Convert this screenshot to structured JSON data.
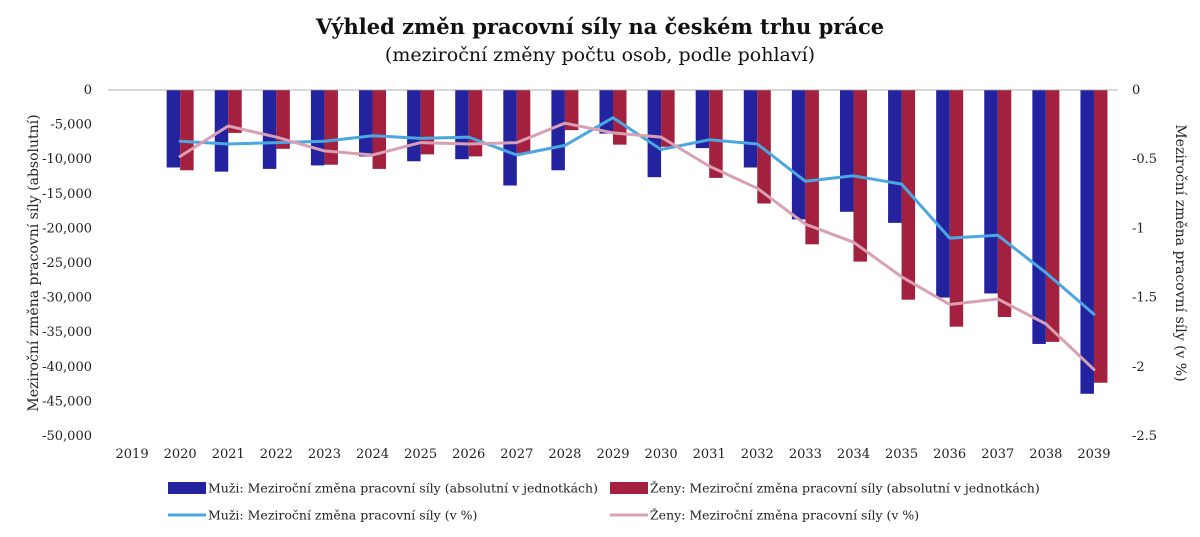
{
  "chart_data": {
    "type": "bar",
    "title": "Výhled změn pracovní síly na českém trhu práce",
    "subtitle": "(meziroční změny počtu osob, podle pohlaví)",
    "ylabel": "Meziroční změna pracovní síly (absolutní)",
    "y2label": "Meziroční změna pracovní síly (v %)",
    "categories": [
      "2019",
      "2020",
      "2021",
      "2022",
      "2023",
      "2024",
      "2025",
      "2026",
      "2027",
      "2028",
      "2029",
      "2030",
      "2031",
      "2032",
      "2033",
      "2034",
      "2035",
      "2036",
      "2037",
      "2038",
      "2039"
    ],
    "ylim": [
      -50000,
      0
    ],
    "yticks": [
      0,
      -5000,
      -10000,
      -15000,
      -20000,
      -25000,
      -30000,
      -35000,
      -40000,
      -45000,
      -50000
    ],
    "ytick_labels": [
      "0",
      "-5,000",
      "-10,000",
      "-15,000",
      "-20,000",
      "-25,000",
      "-30,000",
      "-35,000",
      "-40,000",
      "-45,000",
      "-50,000"
    ],
    "y2lim": [
      -2.5,
      0
    ],
    "y2ticks": [
      0,
      -0.5,
      -1,
      -1.5,
      -2,
      -2.5
    ],
    "y2tick_labels": [
      "0",
      "-0.5",
      "-1",
      "-1.5",
      "-2",
      "-2.5"
    ],
    "bar_series": [
      {
        "name": "Muži: Meziroční změna pracovní síly (absolutní v jednotkách)",
        "color": "#2323a0",
        "values": [
          null,
          -11200,
          -11800,
          -11400,
          -10900,
          -9600,
          -10300,
          -10000,
          -13800,
          -11600,
          -6300,
          -12600,
          -8400,
          -11200,
          -18700,
          -17600,
          -19200,
          -30000,
          -29400,
          -36700,
          -43900
        ]
      },
      {
        "name": "Ženy: Meziroční změna pracovní síly (absolutní v jednotkách)",
        "color": "#a3203f",
        "values": [
          null,
          -11600,
          -6200,
          -8500,
          -10800,
          -11400,
          -9300,
          -9600,
          -9100,
          -5800,
          -7900,
          -8200,
          -12700,
          -16400,
          -22300,
          -24800,
          -30300,
          -34200,
          -32800,
          -36400,
          -42300
        ]
      }
    ],
    "line_series": [
      {
        "name": "Muži: Meziroční změna pracovní síly (v %)",
        "color": "#4aa7e0",
        "values": [
          null,
          -0.37,
          -0.39,
          -0.38,
          -0.37,
          -0.33,
          -0.35,
          -0.34,
          -0.47,
          -0.4,
          -0.2,
          -0.43,
          -0.36,
          -0.39,
          -0.66,
          -0.62,
          -0.68,
          -1.07,
          -1.05,
          -1.32,
          -1.62
        ]
      },
      {
        "name": "Ženy: Meziroční změna pracovní síly (v %)",
        "color": "#d9a0b4",
        "values": [
          null,
          -0.48,
          -0.26,
          -0.34,
          -0.44,
          -0.47,
          -0.38,
          -0.39,
          -0.38,
          -0.24,
          -0.31,
          -0.34,
          -0.55,
          -0.71,
          -0.97,
          -1.1,
          -1.35,
          -1.55,
          -1.51,
          -1.69,
          -2.02
        ]
      }
    ],
    "legend_position": "bottom",
    "grid": false
  }
}
